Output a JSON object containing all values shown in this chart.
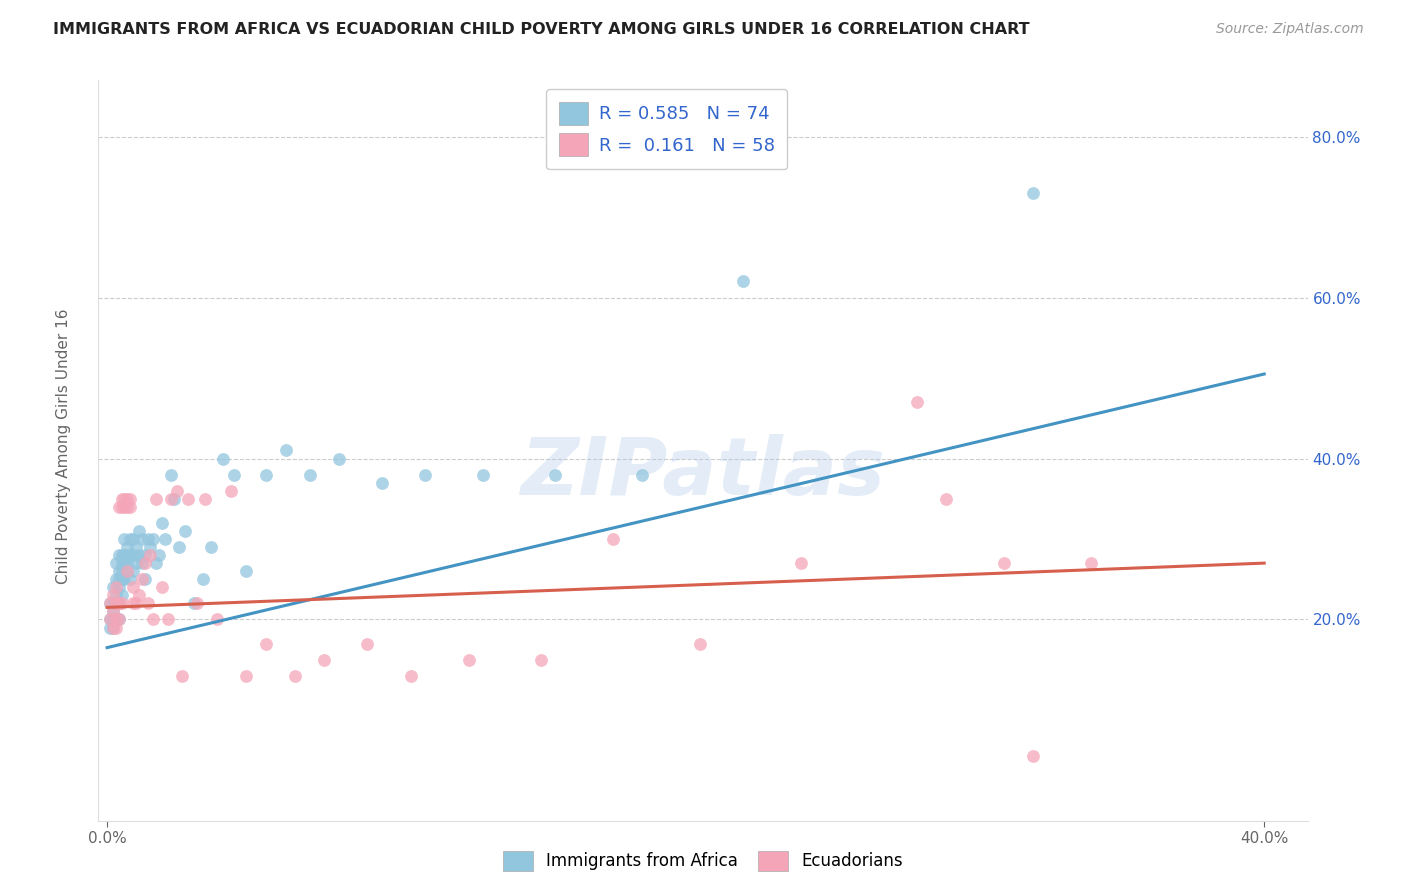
{
  "title": "IMMIGRANTS FROM AFRICA VS ECUADORIAN CHILD POVERTY AMONG GIRLS UNDER 16 CORRELATION CHART",
  "source": "Source: ZipAtlas.com",
  "ylabel": "Child Poverty Among Girls Under 16",
  "legend_r1_label": "R = 0.585",
  "legend_n1_label": "N = 74",
  "legend_r2_label": "R =  0.161",
  "legend_n2_label": "N = 58",
  "color_blue": "#92c5de",
  "color_pink": "#f4a6b8",
  "color_blue_line": "#4393c3",
  "color_pink_line": "#d6604d",
  "color_text_blue": "#3366cc",
  "color_text_dark": "#333333",
  "color_grid": "#cccccc",
  "color_source": "#999999",
  "watermark": "ZIPatlas",
  "background_color": "#ffffff",
  "xlim": [
    -0.003,
    0.415
  ],
  "ylim": [
    -0.05,
    0.87
  ],
  "xtick_positions": [
    0.0,
    0.4
  ],
  "xtick_labels": [
    "0.0%",
    "40.0%"
  ],
  "ytick_positions": [
    0.2,
    0.4,
    0.6,
    0.8
  ],
  "ytick_labels": [
    "20.0%",
    "40.0%",
    "60.0%",
    "80.0%"
  ],
  "africa_trend_x": [
    0.0,
    0.4
  ],
  "africa_trend_y": [
    0.165,
    0.505
  ],
  "ecuador_trend_x": [
    0.0,
    0.4
  ],
  "ecuador_trend_y": [
    0.215,
    0.27
  ],
  "africa_x": [
    0.001,
    0.001,
    0.001,
    0.002,
    0.002,
    0.002,
    0.002,
    0.002,
    0.003,
    0.003,
    0.003,
    0.003,
    0.003,
    0.004,
    0.004,
    0.004,
    0.004,
    0.004,
    0.004,
    0.005,
    0.005,
    0.005,
    0.005,
    0.005,
    0.006,
    0.006,
    0.006,
    0.006,
    0.007,
    0.007,
    0.007,
    0.007,
    0.008,
    0.008,
    0.008,
    0.009,
    0.009,
    0.009,
    0.01,
    0.01,
    0.011,
    0.011,
    0.012,
    0.012,
    0.013,
    0.013,
    0.014,
    0.015,
    0.016,
    0.017,
    0.018,
    0.019,
    0.02,
    0.022,
    0.023,
    0.025,
    0.027,
    0.03,
    0.033,
    0.036,
    0.04,
    0.044,
    0.048,
    0.055,
    0.062,
    0.07,
    0.08,
    0.095,
    0.11,
    0.13,
    0.155,
    0.185,
    0.22,
    0.32
  ],
  "africa_y": [
    0.2,
    0.22,
    0.19,
    0.22,
    0.2,
    0.24,
    0.19,
    0.21,
    0.23,
    0.2,
    0.25,
    0.22,
    0.27,
    0.26,
    0.24,
    0.28,
    0.22,
    0.25,
    0.2,
    0.27,
    0.25,
    0.28,
    0.23,
    0.26,
    0.3,
    0.27,
    0.25,
    0.28,
    0.29,
    0.27,
    0.26,
    0.28,
    0.3,
    0.28,
    0.25,
    0.3,
    0.28,
    0.26,
    0.29,
    0.27,
    0.31,
    0.28,
    0.3,
    0.27,
    0.28,
    0.25,
    0.3,
    0.29,
    0.3,
    0.27,
    0.28,
    0.32,
    0.3,
    0.38,
    0.35,
    0.29,
    0.31,
    0.22,
    0.25,
    0.29,
    0.4,
    0.38,
    0.26,
    0.38,
    0.41,
    0.38,
    0.4,
    0.37,
    0.38,
    0.38,
    0.38,
    0.38,
    0.62,
    0.73
  ],
  "ecuador_x": [
    0.001,
    0.001,
    0.002,
    0.002,
    0.002,
    0.003,
    0.003,
    0.003,
    0.003,
    0.004,
    0.004,
    0.004,
    0.005,
    0.005,
    0.005,
    0.006,
    0.006,
    0.007,
    0.007,
    0.007,
    0.008,
    0.008,
    0.009,
    0.009,
    0.01,
    0.011,
    0.012,
    0.013,
    0.014,
    0.015,
    0.016,
    0.017,
    0.019,
    0.021,
    0.022,
    0.024,
    0.026,
    0.028,
    0.031,
    0.034,
    0.038,
    0.043,
    0.048,
    0.055,
    0.065,
    0.075,
    0.09,
    0.105,
    0.125,
    0.15,
    0.175,
    0.205,
    0.24,
    0.28,
    0.29,
    0.31,
    0.32,
    0.34
  ],
  "ecuador_y": [
    0.22,
    0.2,
    0.21,
    0.19,
    0.23,
    0.22,
    0.2,
    0.24,
    0.19,
    0.34,
    0.22,
    0.2,
    0.34,
    0.35,
    0.22,
    0.35,
    0.34,
    0.34,
    0.26,
    0.35,
    0.34,
    0.35,
    0.22,
    0.24,
    0.22,
    0.23,
    0.25,
    0.27,
    0.22,
    0.28,
    0.2,
    0.35,
    0.24,
    0.2,
    0.35,
    0.36,
    0.13,
    0.35,
    0.22,
    0.35,
    0.2,
    0.36,
    0.13,
    0.17,
    0.13,
    0.15,
    0.17,
    0.13,
    0.15,
    0.15,
    0.3,
    0.17,
    0.27,
    0.47,
    0.35,
    0.27,
    0.03,
    0.27
  ]
}
